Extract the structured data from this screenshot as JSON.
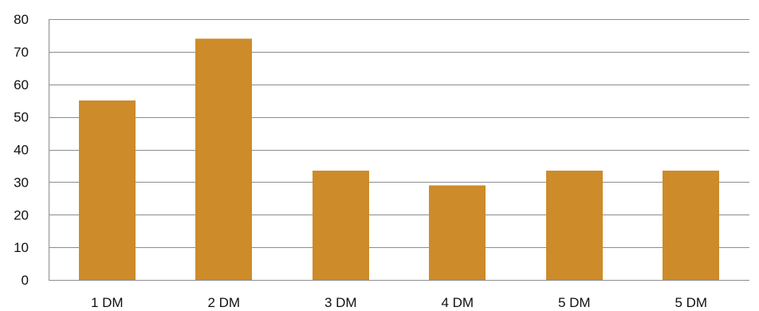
{
  "chart_data": {
    "type": "bar",
    "title": "",
    "xlabel": "",
    "ylabel": "",
    "categories": [
      "1 DM",
      "2 DM",
      "3 DM",
      "4 DM",
      "5 DM",
      "5 DM"
    ],
    "values": [
      55,
      74,
      33.5,
      29,
      33.5,
      33.5
    ],
    "ylim": [
      0,
      80
    ],
    "yticks": [
      "0",
      "10",
      "20",
      "30",
      "40",
      "50",
      "60",
      "70",
      "80"
    ],
    "grid": true,
    "legend": "none",
    "colors": {
      "bar": "#cd8b2a",
      "grid": "#8c8c8c",
      "text": "#111111"
    }
  }
}
